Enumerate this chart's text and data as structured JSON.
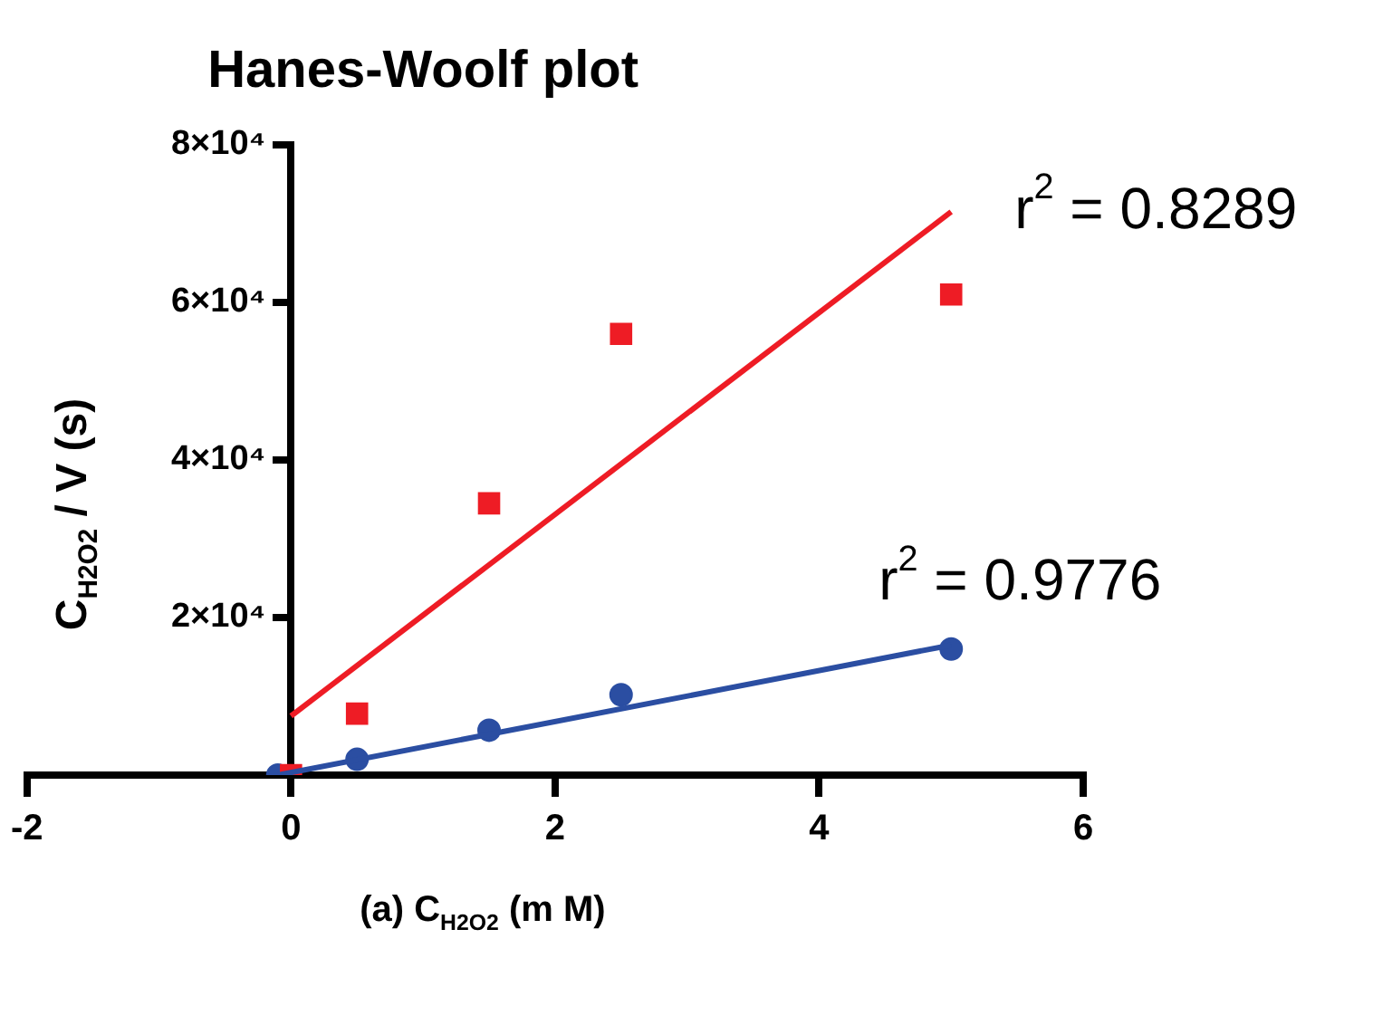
{
  "chart_data": {
    "type": "scatter",
    "title": "Hanes-Woolf plot",
    "xlabel": "(a) C$_{H2O2}$ (m M)",
    "ylabel": "C$_{H2O2}$ / V (s)",
    "xlim": [
      -2,
      6
    ],
    "xticks": [
      -2,
      0,
      2,
      4,
      6
    ],
    "ylim": [
      0,
      80000
    ],
    "yticks": [
      {
        "value": 20000,
        "label": "2×10⁴"
      },
      {
        "value": 40000,
        "label": "4×10⁴"
      },
      {
        "value": 60000,
        "label": "6×10⁴"
      },
      {
        "value": 80000,
        "label": "8×10⁴"
      }
    ],
    "grid": false,
    "legend": false,
    "series": [
      {
        "marker": "square",
        "color": "#ee1c25",
        "x": [
          0,
          0.5,
          1.5,
          2.5,
          5
        ],
        "values": [
          0,
          7800,
          34500,
          56000,
          61000
        ]
      },
      {
        "marker": "circle",
        "color": "#2b4ea2",
        "x": [
          -0.1,
          0.5,
          1.5,
          2.5,
          5
        ],
        "values": [
          0,
          2000,
          5700,
          10200,
          16000
        ]
      },
      {
        "type": "line",
        "marker": "none",
        "line_style": "solid",
        "color": "#ee1c25",
        "x": [
          0,
          5
        ],
        "values": [
          7500,
          71500
        ]
      },
      {
        "type": "line",
        "marker": "none",
        "line_style": "solid",
        "color": "#2b4ea2",
        "x": [
          -0.1,
          5
        ],
        "values": [
          0,
          16500
        ]
      }
    ],
    "annotations": [
      "r$^{2}$ = 0.8289",
      "r$^{2}$ = 0.9776"
    ]
  }
}
